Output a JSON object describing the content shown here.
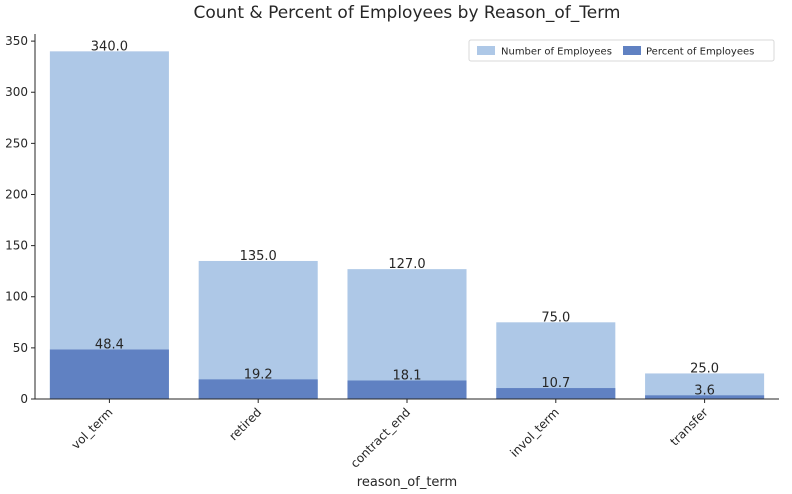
{
  "chart_data": {
    "type": "bar",
    "title": "Count & Percent of Employees by Reason_of_Term",
    "xlabel": "reason_of_term",
    "ylabel": "",
    "categories": [
      "vol_term",
      "retired",
      "contract_end",
      "invol_term",
      "transfer"
    ],
    "series": [
      {
        "name": "Number of Employees",
        "values": [
          340.0,
          135.0,
          127.0,
          75.0,
          25.0
        ],
        "labels": [
          "340.0",
          "135.0",
          "127.0",
          "75.0",
          "25.0"
        ],
        "color": "#aec8e7"
      },
      {
        "name": "Percent of Employees",
        "values": [
          48.4,
          19.2,
          18.1,
          10.7,
          3.6
        ],
        "labels": [
          "48.4",
          "19.2",
          "18.1",
          "10.7",
          "3.6"
        ],
        "color": "#6081c2"
      }
    ],
    "ylim": [
      0,
      355
    ],
    "yticks": [
      0,
      50,
      100,
      150,
      200,
      250,
      300,
      350
    ],
    "grid": false,
    "legend": "top-right"
  }
}
